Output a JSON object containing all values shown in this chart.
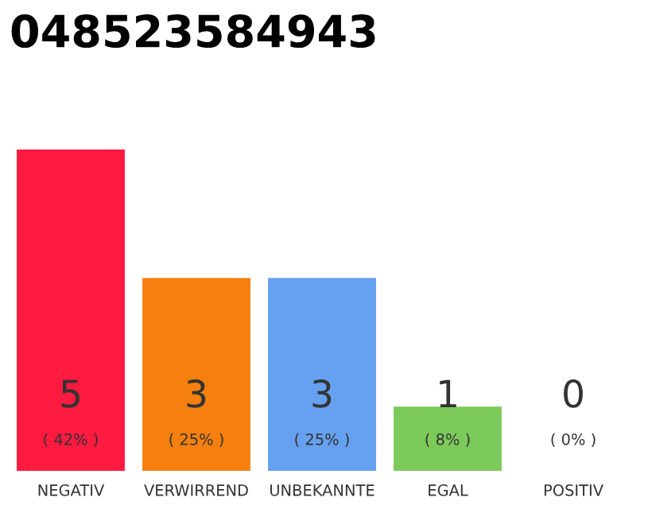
{
  "chart_data": {
    "type": "bar",
    "title": "048523584943",
    "categories": [
      "NEGATIV",
      "VERWIRREND",
      "UNBEKANNTE",
      "EGAL",
      "POSITIV"
    ],
    "values": [
      5,
      3,
      3,
      1,
      0
    ],
    "colors": [
      "#ff1a40",
      "#f5800f",
      "#66a0f0",
      "#7ccb5a",
      "#cccccc"
    ],
    "value_labels": [
      "5\n( 42% )",
      "3\n( 25% )",
      "3\n( 25% )",
      "1\n( 8% )",
      "0\n( 0% )"
    ],
    "grid": false,
    "legend": false
  }
}
